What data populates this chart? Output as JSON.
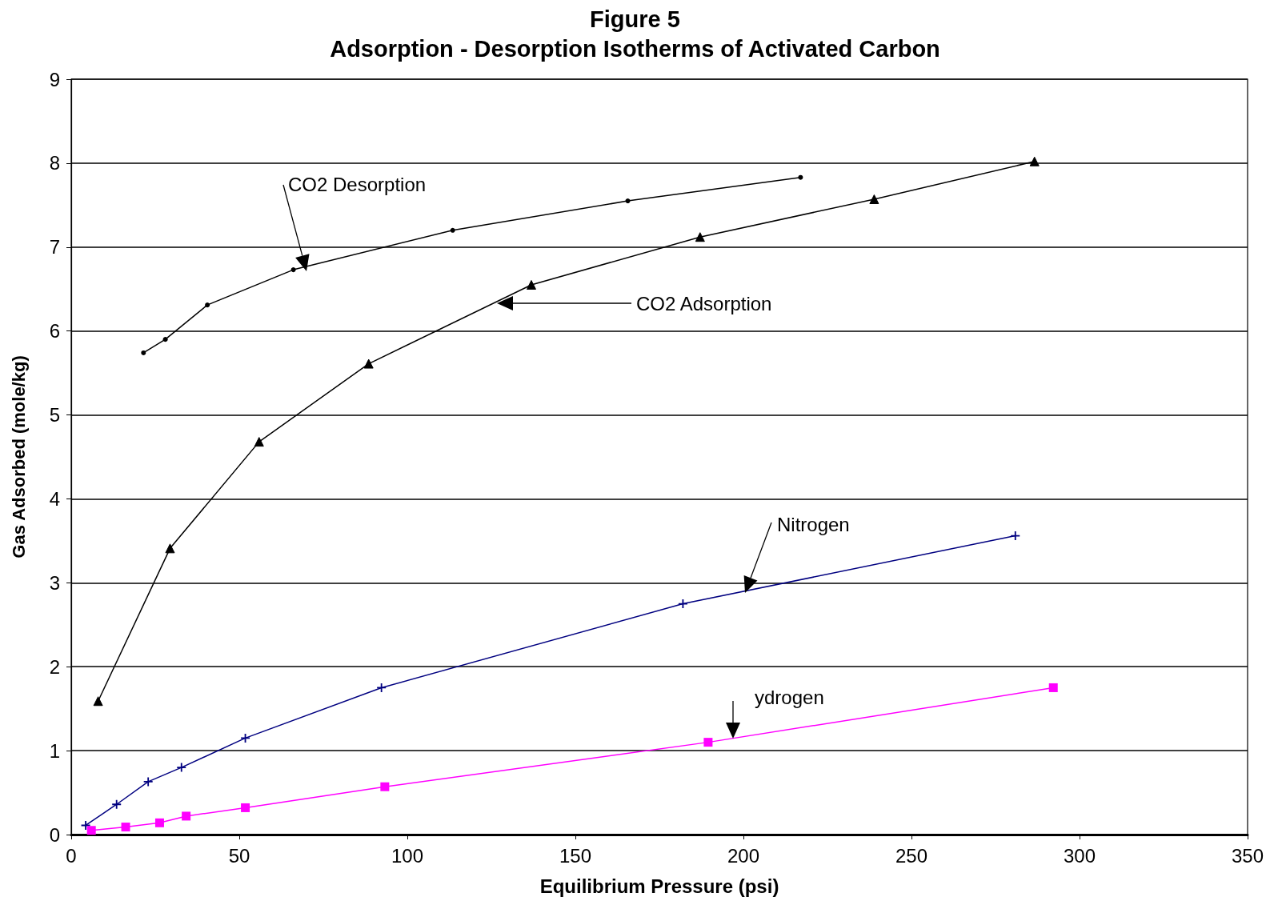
{
  "chart_data": {
    "type": "line",
    "title": "Figure 5",
    "subtitle": "Adsorption - Desorption Isotherms of Activated Carbon",
    "xlabel": "Equilibrium Pressure (psi)",
    "ylabel": "Gas Adsorbed (mole/kg)",
    "xlim": [
      0,
      350
    ],
    "xticks": [
      0,
      50,
      100,
      150,
      200,
      250,
      300,
      350
    ],
    "ylim": [
      0,
      9
    ],
    "yticks": [
      0,
      1,
      2,
      3,
      4,
      5,
      6,
      7,
      8,
      9
    ],
    "grid": "y",
    "series": [
      {
        "color": "#000000",
        "marker": "triangle",
        "x": [
          8.0,
          29.4,
          55.9,
          88.5,
          136.9,
          187.1,
          238.9,
          286.6
        ],
        "values": [
          1.59,
          3.41,
          4.68,
          5.61,
          6.55,
          7.12,
          7.57,
          8.02
        ]
      },
      {
        "color": "#000000",
        "marker": "circle",
        "x": [
          21.5,
          28.0,
          40.5,
          66.1,
          113.5,
          165.6,
          217.0
        ],
        "values": [
          5.74,
          5.9,
          6.31,
          6.73,
          7.2,
          7.55,
          7.83
        ]
      },
      {
        "color": "#000080",
        "marker": "cross",
        "x": [
          4.3,
          13.5,
          22.9,
          32.8,
          51.8,
          92.3,
          182.0,
          280.9
        ],
        "values": [
          0.11,
          0.36,
          0.63,
          0.8,
          1.15,
          1.75,
          2.75,
          3.56
        ]
      },
      {
        "color": "#ff00ff",
        "marker": "square",
        "x": [
          6.0,
          16.2,
          26.3,
          34.2,
          51.8,
          93.3,
          189.5,
          292.2
        ],
        "values": [
          0.05,
          0.09,
          0.14,
          0.22,
          0.32,
          0.57,
          1.1,
          1.75
        ]
      }
    ],
    "annotations": [
      "CO2  Desorption",
      "CO2 Adsorption",
      "Nitrogen",
      "ydrogen"
    ]
  }
}
